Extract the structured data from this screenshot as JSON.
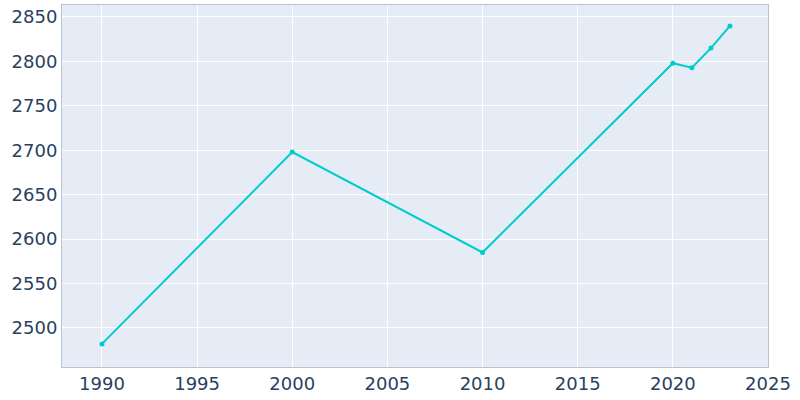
{
  "chart_data": {
    "type": "line",
    "x": [
      1990,
      2000,
      2010,
      2020,
      2021,
      2022,
      2023
    ],
    "values": [
      2482,
      2698,
      2585,
      2798,
      2793,
      2815,
      2840
    ],
    "color": "#00cccc",
    "marker": "circle",
    "xlim": [
      1987.9,
      2025
    ],
    "xticks": [
      1990,
      1995,
      2000,
      2005,
      2010,
      2015,
      2020,
      2025
    ],
    "ylim": [
      2456,
      2863.5
    ],
    "yticks": [
      2500,
      2550,
      2600,
      2650,
      2700,
      2750,
      2800,
      2850
    ],
    "grid": true
  }
}
